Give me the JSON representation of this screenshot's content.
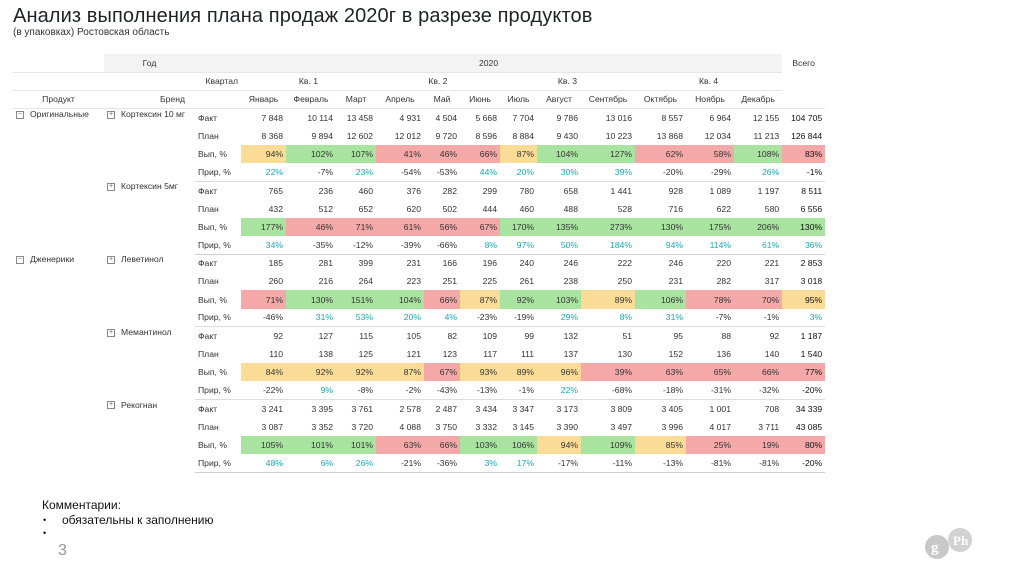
{
  "title": "Анализ выполнения плана продаж  2020г в разрезе продуктов",
  "subtitle": "(в упаковках) Ростовская область",
  "header": {
    "year_label": "Год",
    "year": "2020",
    "total_label": "Всего",
    "quarter_label": "Квартал",
    "product_label": "Продукт",
    "brand_label": "Бренд",
    "quarters": [
      "Кв. 1",
      "Кв. 2",
      "Кв. 3",
      "Кв. 4"
    ],
    "months": [
      "Январь",
      "Февраль",
      "Март",
      "Апрель",
      "Май",
      "Июнь",
      "Июль",
      "Август",
      "Сентябрь",
      "Октябрь",
      "Ноябрь",
      "Декабрь"
    ]
  },
  "products": [
    {
      "name": "Оригинальные",
      "brands": [
        {
          "name": "Кортексин 10 мг",
          "rows": [
            {
              "label": "Факт",
              "values": [
                "7 848",
                "10 114",
                "13 458",
                "4 931",
                "4 504",
                "5 668",
                "7 704",
                "9 786",
                "13 016",
                "8 557",
                "6 964",
                "12 155"
              ],
              "total": "104 705"
            },
            {
              "label": "План",
              "values": [
                "8 368",
                "9 894",
                "12 602",
                "12 012",
                "9 720",
                "8 596",
                "8 884",
                "9 430",
                "10 223",
                "13 868",
                "12 034",
                "11 213"
              ],
              "total": "126 844"
            },
            {
              "label": "Вып, %",
              "values": [
                "94%",
                "102%",
                "107%",
                "41%",
                "46%",
                "66%",
                "87%",
                "104%",
                "127%",
                "62%",
                "58%",
                "108%"
              ],
              "total": "83%",
              "colors": [
                "yellow",
                "green",
                "green",
                "red",
                "red",
                "red",
                "yellow",
                "green",
                "green",
                "red",
                "red",
                "green"
              ],
              "total_color": "red"
            },
            {
              "label": "Прир, %",
              "values": [
                "22%",
                "-7%",
                "23%",
                "-54%",
                "-53%",
                "44%",
                "20%",
                "30%",
                "39%",
                "-20%",
                "-29%",
                "26%"
              ],
              "total": "-1%",
              "colors": [
                "teal",
                "",
                "teal",
                "",
                "",
                "teal",
                "teal",
                "teal",
                "teal",
                "",
                "",
                "teal"
              ],
              "total_color": ""
            }
          ]
        },
        {
          "name": "Кортексин 5мг",
          "rows": [
            {
              "label": "Факт",
              "values": [
                "765",
                "236",
                "460",
                "376",
                "282",
                "299",
                "780",
                "658",
                "1 441",
                "928",
                "1 089",
                "1 197"
              ],
              "total": "8 511"
            },
            {
              "label": "План",
              "values": [
                "432",
                "512",
                "652",
                "620",
                "502",
                "444",
                "460",
                "488",
                "528",
                "716",
                "622",
                "580"
              ],
              "total": "6 556"
            },
            {
              "label": "Вып, %",
              "values": [
                "177%",
                "46%",
                "71%",
                "61%",
                "56%",
                "67%",
                "170%",
                "135%",
                "273%",
                "130%",
                "175%",
                "206%"
              ],
              "total": "130%",
              "colors": [
                "green",
                "red",
                "red",
                "red",
                "red",
                "red",
                "green",
                "green",
                "green",
                "green",
                "green",
                "green"
              ],
              "total_color": "green"
            },
            {
              "label": "Прир, %",
              "values": [
                "34%",
                "-35%",
                "-12%",
                "-39%",
                "-66%",
                "8%",
                "97%",
                "50%",
                "184%",
                "94%",
                "114%",
                "61%"
              ],
              "total": "36%",
              "colors": [
                "teal",
                "",
                "",
                "",
                "",
                "teal",
                "teal",
                "teal",
                "teal",
                "teal",
                "teal",
                "teal"
              ],
              "total_color": "teal"
            }
          ]
        }
      ]
    },
    {
      "name": "Дженерики",
      "brands": [
        {
          "name": "Леветинол",
          "rows": [
            {
              "label": "Факт",
              "values": [
                "185",
                "281",
                "399",
                "231",
                "166",
                "196",
                "240",
                "246",
                "222",
                "246",
                "220",
                "221"
              ],
              "total": "2 853"
            },
            {
              "label": "План",
              "values": [
                "260",
                "216",
                "264",
                "223",
                "251",
                "225",
                "261",
                "238",
                "250",
                "231",
                "282",
                "317"
              ],
              "total": "3 018"
            },
            {
              "label": "Вып, %",
              "values": [
                "71%",
                "130%",
                "151%",
                "104%",
                "66%",
                "87%",
                "92%",
                "103%",
                "89%",
                "106%",
                "78%",
                "70%"
              ],
              "total": "95%",
              "colors": [
                "red",
                "green",
                "green",
                "green",
                "red",
                "yellow",
                "green",
                "green",
                "yellow",
                "green",
                "red",
                "red"
              ],
              "total_color": "yellow"
            },
            {
              "label": "Прир, %",
              "values": [
                "-46%",
                "31%",
                "53%",
                "20%",
                "4%",
                "-23%",
                "-19%",
                "29%",
                "8%",
                "31%",
                "-7%",
                "-1%"
              ],
              "total": "3%",
              "colors": [
                "",
                "teal",
                "teal",
                "teal",
                "teal",
                "",
                "",
                "teal",
                "teal",
                "teal",
                "",
                ""
              ],
              "total_color": "teal"
            }
          ]
        },
        {
          "name": "Мемантинол",
          "rows": [
            {
              "label": "Факт",
              "values": [
                "92",
                "127",
                "115",
                "105",
                "82",
                "109",
                "99",
                "132",
                "51",
                "95",
                "88",
                "92"
              ],
              "total": "1 187"
            },
            {
              "label": "План",
              "values": [
                "110",
                "138",
                "125",
                "121",
                "123",
                "117",
                "111",
                "137",
                "130",
                "152",
                "136",
                "140"
              ],
              "total": "1 540"
            },
            {
              "label": "Вып, %",
              "values": [
                "84%",
                "92%",
                "92%",
                "87%",
                "67%",
                "93%",
                "89%",
                "96%",
                "39%",
                "63%",
                "65%",
                "66%"
              ],
              "total": "77%",
              "colors": [
                "yellow",
                "yellow",
                "yellow",
                "yellow",
                "red",
                "yellow",
                "yellow",
                "yellow",
                "red",
                "red",
                "red",
                "red"
              ],
              "total_color": "red"
            },
            {
              "label": "Прир, %",
              "values": [
                "-22%",
                "9%",
                "-8%",
                "-2%",
                "-43%",
                "-13%",
                "-1%",
                "22%",
                "-68%",
                "-18%",
                "-31%",
                "-32%"
              ],
              "total": "-20%",
              "colors": [
                "",
                "teal",
                "",
                "",
                "",
                "",
                "",
                "teal",
                "",
                "",
                "",
                ""
              ],
              "total_color": ""
            }
          ]
        },
        {
          "name": "Рекогнан",
          "rows": [
            {
              "label": "Факт",
              "values": [
                "3 241",
                "3 395",
                "3 761",
                "2 578",
                "2 487",
                "3 434",
                "3 347",
                "3 173",
                "3 809",
                "3 405",
                "1 001",
                "708"
              ],
              "total": "34 339"
            },
            {
              "label": "План",
              "values": [
                "3 087",
                "3 352",
                "3 720",
                "4 088",
                "3 750",
                "3 332",
                "3 145",
                "3 390",
                "3 497",
                "3 996",
                "4 017",
                "3 711"
              ],
              "total": "43 085"
            },
            {
              "label": "Вып, %",
              "values": [
                "105%",
                "101%",
                "101%",
                "63%",
                "66%",
                "103%",
                "106%",
                "94%",
                "109%",
                "85%",
                "25%",
                "19%"
              ],
              "total": "80%",
              "colors": [
                "green",
                "green",
                "green",
                "red",
                "red",
                "green",
                "green",
                "yellow",
                "green",
                "yellow",
                "red",
                "red"
              ],
              "total_color": "red"
            },
            {
              "label": "Прир, %",
              "values": [
                "48%",
                "6%",
                "26%",
                "-21%",
                "-36%",
                "3%",
                "17%",
                "-17%",
                "-11%",
                "-13%",
                "-81%",
                "-81%"
              ],
              "total": "-20%",
              "colors": [
                "teal",
                "teal",
                "teal",
                "",
                "",
                "teal",
                "teal",
                "",
                "",
                "",
                "",
                ""
              ],
              "total_color": ""
            }
          ]
        }
      ]
    }
  ],
  "comments": {
    "title": "Комментарии:",
    "items": [
      "обязательны к заполнению",
      ""
    ]
  },
  "page_number": "3",
  "logo_text": "g Ph",
  "colors": {
    "red": "#f4a8a8",
    "green": "#a8e3a0",
    "yellow": "#fbdc97",
    "teal": "#17a9b5"
  }
}
